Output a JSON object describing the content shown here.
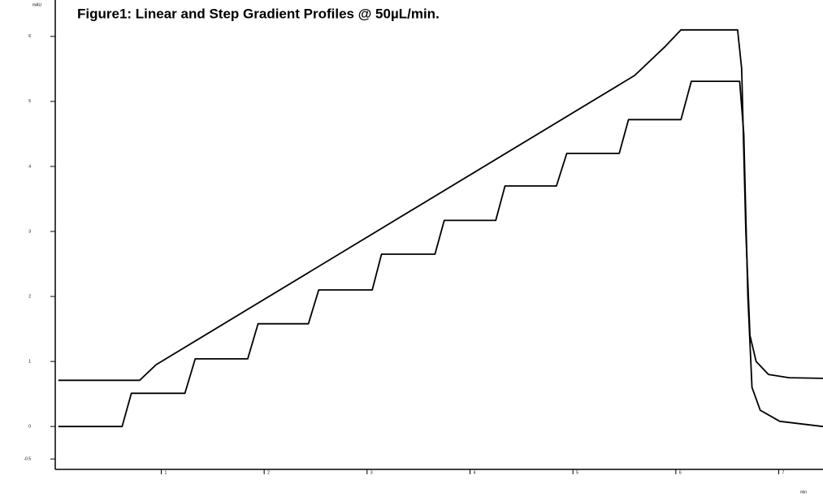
{
  "chart_data": {
    "type": "line",
    "title": "Figure1: Linear and Step Gradient Profiles @ 50µL/min.",
    "ylabel": "mAU",
    "xlabel": "min",
    "xlim": [
      -0.03,
      7.43
    ],
    "ylim": [
      -0.66,
      6.56
    ],
    "xticks": [
      1,
      2,
      3,
      4,
      5,
      6,
      7
    ],
    "yticks": [
      -0.5,
      0,
      1,
      2,
      3,
      4,
      5,
      6
    ],
    "series": [
      {
        "color": "#000000",
        "x": [
          0,
          0.79,
          0.95,
          5.6,
          5.9,
          6.05,
          6.6,
          6.64,
          6.68,
          6.72,
          6.78,
          6.9,
          7.1,
          7.43
        ],
        "values": [
          0.71,
          0.71,
          0.95,
          5.4,
          5.85,
          6.1,
          6.1,
          5.5,
          3.0,
          1.4,
          1.0,
          0.8,
          0.75,
          0.74
        ]
      },
      {
        "color": "#000000",
        "x": [
          0,
          0.62,
          0.71,
          1.23,
          1.33,
          1.84,
          1.94,
          2.43,
          2.53,
          3.05,
          3.14,
          3.66,
          3.75,
          4.25,
          4.34,
          4.84,
          4.94,
          5.45,
          5.54,
          6.05,
          6.15,
          6.62,
          6.66,
          6.7,
          6.74,
          6.82,
          7.01,
          7.43
        ],
        "values": [
          0,
          0,
          0.51,
          0.51,
          1.04,
          1.04,
          1.58,
          1.58,
          2.1,
          2.1,
          2.65,
          2.65,
          3.17,
          3.17,
          3.7,
          3.7,
          4.2,
          4.2,
          4.72,
          4.72,
          5.31,
          5.31,
          4.5,
          2.0,
          0.6,
          0.25,
          0.08,
          0.0
        ]
      }
    ]
  }
}
